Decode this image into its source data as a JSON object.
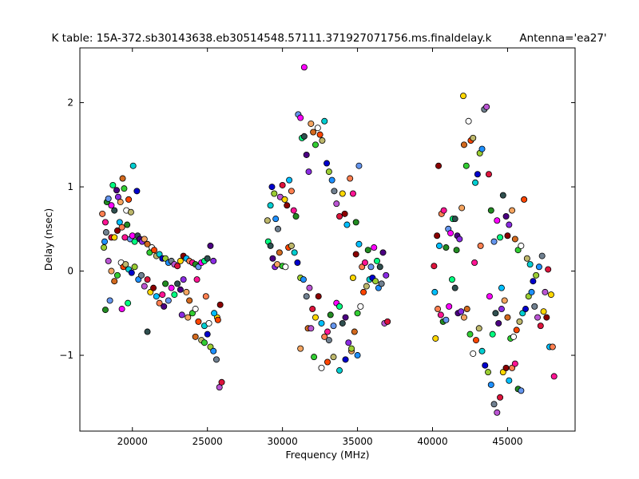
{
  "chart_data": {
    "type": "scatter",
    "title": "K table: 15A-372.sb30143638.eb30514548.57111.371927071756.ms.finaldelay.k",
    "subtitle": "Antenna='ea27'",
    "xlabel": "Frequency (MHz)",
    "ylabel": "Delay (nsec)",
    "xlim": [
      16500,
      49500
    ],
    "ylim": [
      -1.9,
      2.65
    ],
    "xticks": [
      20000,
      25000,
      30000,
      35000,
      40000,
      45000
    ],
    "yticks": [
      -1,
      0,
      1,
      2
    ],
    "grid": false,
    "legend": "none",
    "marker_edge_color": "#000000",
    "palette": [
      "#ff7f50",
      "#1e90ff",
      "#32cd32",
      "#ff00ff",
      "#ffd700",
      "#00ced1",
      "#8a2be2",
      "#ff1493",
      "#708090",
      "#ffffff",
      "#00ff7f",
      "#8b0000",
      "#0000cd",
      "#f4a460",
      "#228b22",
      "#ba55d3",
      "#ff4500",
      "#2f4f4f",
      "#00bfff",
      "#9acd32",
      "#d2691e",
      "#6495ed",
      "#dc143c",
      "#bdb76b",
      "#4b0082"
    ],
    "points": [
      [
        18000,
        0.68
      ],
      [
        18200,
        0.58
      ],
      [
        18300,
        0.82
      ],
      [
        18400,
        0.86
      ],
      [
        18600,
        0.78
      ],
      [
        18700,
        1.02
      ],
      [
        18800,
        0.72
      ],
      [
        18950,
        0.96
      ],
      [
        19050,
        0.88
      ],
      [
        19200,
        0.82
      ],
      [
        19350,
        1.1
      ],
      [
        19450,
        0.98
      ],
      [
        19600,
        0.72
      ],
      [
        19750,
        0.85
      ],
      [
        19900,
        0.7
      ],
      [
        20050,
        1.25
      ],
      [
        20300,
        0.95
      ],
      [
        18100,
        0.28
      ],
      [
        18150,
        0.35
      ],
      [
        18250,
        0.46
      ],
      [
        18400,
        0.12
      ],
      [
        18600,
        0.4
      ],
      [
        18800,
        0.4
      ],
      [
        19000,
        0.48
      ],
      [
        19150,
        0.58
      ],
      [
        19300,
        0.52
      ],
      [
        19500,
        0.4
      ],
      [
        19650,
        0.55
      ],
      [
        19850,
        0.38
      ],
      [
        20000,
        0.42
      ],
      [
        20150,
        0.35
      ],
      [
        20350,
        0.42
      ],
      [
        20500,
        0.38
      ],
      [
        20650,
        0.35
      ],
      [
        20800,
        0.38
      ],
      [
        21000,
        0.32
      ],
      [
        21150,
        0.22
      ],
      [
        21300,
        0.28
      ],
      [
        21450,
        0.25
      ],
      [
        21600,
        0.18
      ],
      [
        21800,
        0.2
      ],
      [
        22000,
        0.15
      ],
      [
        22200,
        0.15
      ],
      [
        22400,
        0.1
      ],
      [
        22600,
        0.12
      ],
      [
        22800,
        0.08
      ],
      [
        23000,
        0.06
      ],
      [
        23200,
        0.12
      ],
      [
        23400,
        0.18
      ],
      [
        23600,
        0.15
      ],
      [
        23800,
        0.12
      ],
      [
        24000,
        0.1
      ],
      [
        24200,
        0.08
      ],
      [
        24400,
        0.05
      ],
      [
        24600,
        0.1
      ],
      [
        24800,
        0.12
      ],
      [
        25000,
        0.15
      ],
      [
        25200,
        0.3
      ],
      [
        25400,
        0.12
      ],
      [
        18600,
        0.0
      ],
      [
        18800,
        -0.12
      ],
      [
        19000,
        -0.05
      ],
      [
        19250,
        0.1
      ],
      [
        19400,
        0.05
      ],
      [
        19550,
        0.08
      ],
      [
        19750,
        0.02
      ],
      [
        19950,
        -0.02
      ],
      [
        20150,
        0.05
      ],
      [
        20400,
        -0.1
      ],
      [
        20600,
        -0.05
      ],
      [
        20800,
        -0.18
      ],
      [
        21000,
        -0.1
      ],
      [
        21200,
        -0.25
      ],
      [
        21400,
        -0.2
      ],
      [
        21600,
        -0.3
      ],
      [
        21800,
        -0.38
      ],
      [
        22000,
        -0.28
      ],
      [
        22200,
        -0.15
      ],
      [
        22400,
        -0.35
      ],
      [
        22600,
        -0.2
      ],
      [
        22800,
        -0.28
      ],
      [
        23000,
        -0.15
      ],
      [
        23200,
        -0.22
      ],
      [
        23400,
        -0.1
      ],
      [
        23600,
        -0.25
      ],
      [
        23800,
        -0.35
      ],
      [
        24000,
        -0.5
      ],
      [
        24200,
        -0.45
      ],
      [
        24400,
        -0.6
      ],
      [
        24600,
        -0.82
      ],
      [
        24800,
        -0.65
      ],
      [
        25000,
        -0.75
      ],
      [
        25200,
        -0.9
      ],
      [
        25400,
        -0.95
      ],
      [
        25600,
        -1.05
      ],
      [
        25800,
        -1.38
      ],
      [
        25950,
        -1.32
      ],
      [
        25650,
        -0.55
      ],
      [
        25850,
        -0.4
      ],
      [
        25450,
        -0.5
      ],
      [
        24900,
        -0.3
      ],
      [
        24300,
        -0.1
      ],
      [
        18200,
        -0.46
      ],
      [
        18500,
        -0.35
      ],
      [
        19300,
        -0.45
      ],
      [
        19700,
        -0.38
      ],
      [
        21000,
        -0.72
      ],
      [
        22100,
        -0.42
      ],
      [
        23300,
        -0.52
      ],
      [
        23700,
        -0.55
      ],
      [
        24200,
        -0.78
      ],
      [
        24800,
        -0.85
      ],
      [
        25100,
        -0.62
      ],
      [
        25700,
        -0.58
      ],
      [
        29000,
        0.6
      ],
      [
        29200,
        0.78
      ],
      [
        29300,
        1.0
      ],
      [
        29450,
        0.92
      ],
      [
        29550,
        0.62
      ],
      [
        29700,
        0.5
      ],
      [
        29850,
        0.88
      ],
      [
        30000,
        1.02
      ],
      [
        30150,
        0.85
      ],
      [
        30300,
        0.78
      ],
      [
        30450,
        1.08
      ],
      [
        30600,
        0.95
      ],
      [
        30750,
        0.72
      ],
      [
        30900,
        0.65
      ],
      [
        31050,
        1.86
      ],
      [
        31200,
        1.82
      ],
      [
        31300,
        1.58
      ],
      [
        31450,
        1.6
      ],
      [
        31600,
        1.38
      ],
      [
        31750,
        1.18
      ],
      [
        31900,
        1.75
      ],
      [
        32050,
        1.65
      ],
      [
        32200,
        1.5
      ],
      [
        32350,
        1.7
      ],
      [
        32500,
        1.62
      ],
      [
        32650,
        1.55
      ],
      [
        32800,
        1.78
      ],
      [
        32950,
        1.28
      ],
      [
        33100,
        1.18
      ],
      [
        33300,
        1.08
      ],
      [
        33450,
        0.95
      ],
      [
        33600,
        0.8
      ],
      [
        33800,
        0.65
      ],
      [
        34000,
        0.92
      ],
      [
        34150,
        0.68
      ],
      [
        34300,
        0.55
      ],
      [
        34500,
        1.1
      ],
      [
        34700,
        0.92
      ],
      [
        34900,
        0.58
      ],
      [
        35100,
        1.25
      ],
      [
        31450,
        2.42
      ],
      [
        29050,
        0.35
      ],
      [
        29200,
        0.3
      ],
      [
        29350,
        0.15
      ],
      [
        29500,
        0.05
      ],
      [
        29650,
        0.08
      ],
      [
        29800,
        0.22
      ],
      [
        30000,
        0.06
      ],
      [
        30200,
        0.05
      ],
      [
        30400,
        0.28
      ],
      [
        30600,
        0.3
      ],
      [
        30800,
        0.22
      ],
      [
        31000,
        0.1
      ],
      [
        31200,
        -0.08
      ],
      [
        31400,
        -0.1
      ],
      [
        31600,
        -0.3
      ],
      [
        31800,
        -0.2
      ],
      [
        32000,
        -0.45
      ],
      [
        32200,
        -0.55
      ],
      [
        32400,
        -0.3
      ],
      [
        32600,
        -0.62
      ],
      [
        32800,
        -0.78
      ],
      [
        33000,
        -0.72
      ],
      [
        33200,
        -0.52
      ],
      [
        33400,
        -0.65
      ],
      [
        33600,
        -0.38
      ],
      [
        33800,
        -0.42
      ],
      [
        34000,
        -0.62
      ],
      [
        34200,
        -0.55
      ],
      [
        34400,
        -0.85
      ],
      [
        34600,
        -0.95
      ],
      [
        34800,
        -0.72
      ],
      [
        35000,
        -0.5
      ],
      [
        35200,
        -0.42
      ],
      [
        35400,
        -0.25
      ],
      [
        35600,
        -0.18
      ],
      [
        35800,
        -0.1
      ],
      [
        36000,
        -0.08
      ],
      [
        36200,
        -0.12
      ],
      [
        36400,
        -0.2
      ],
      [
        36600,
        -0.15
      ],
      [
        36800,
        -0.62
      ],
      [
        37000,
        -0.6
      ],
      [
        34700,
        -0.08
      ],
      [
        34900,
        0.2
      ],
      [
        35100,
        0.32
      ],
      [
        35300,
        0.05
      ],
      [
        35500,
        0.1
      ],
      [
        35700,
        0.25
      ],
      [
        35900,
        0.05
      ],
      [
        36100,
        0.28
      ],
      [
        36300,
        0.12
      ],
      [
        36500,
        0.05
      ],
      [
        36700,
        0.22
      ],
      [
        36900,
        -0.05
      ],
      [
        31200,
        -0.92
      ],
      [
        31700,
        -0.68
      ],
      [
        32100,
        -1.02
      ],
      [
        32600,
        -1.15
      ],
      [
        33000,
        -1.08
      ],
      [
        33400,
        -1.02
      ],
      [
        33800,
        -1.18
      ],
      [
        34200,
        -1.05
      ],
      [
        34600,
        -0.92
      ],
      [
        35000,
        -1.0
      ],
      [
        33100,
        -0.82
      ],
      [
        31900,
        -0.68
      ],
      [
        40100,
        0.06
      ],
      [
        40200,
        -0.8
      ],
      [
        40300,
        0.42
      ],
      [
        40450,
        0.3
      ],
      [
        40600,
        0.68
      ],
      [
        40750,
        0.72
      ],
      [
        40900,
        0.28
      ],
      [
        41050,
        0.5
      ],
      [
        41200,
        0.45
      ],
      [
        41350,
        0.62
      ],
      [
        41500,
        0.62
      ],
      [
        41650,
        0.42
      ],
      [
        41800,
        0.38
      ],
      [
        41950,
        0.75
      ],
      [
        42100,
        1.5
      ],
      [
        42250,
        1.25
      ],
      [
        42400,
        1.78
      ],
      [
        42550,
        1.55
      ],
      [
        42700,
        1.58
      ],
      [
        42850,
        1.05
      ],
      [
        43000,
        1.15
      ],
      [
        43150,
        1.4
      ],
      [
        43300,
        1.45
      ],
      [
        43450,
        1.92
      ],
      [
        43600,
        1.95
      ],
      [
        43750,
        1.15
      ],
      [
        42050,
        2.08
      ],
      [
        40400,
        1.25
      ],
      [
        40150,
        -0.25
      ],
      [
        40350,
        -0.45
      ],
      [
        40550,
        -0.52
      ],
      [
        40700,
        -0.6
      ],
      [
        40900,
        -0.58
      ],
      [
        41100,
        -0.42
      ],
      [
        41300,
        -0.1
      ],
      [
        41500,
        -0.2
      ],
      [
        41700,
        -0.5
      ],
      [
        41900,
        -0.48
      ],
      [
        42100,
        -0.55
      ],
      [
        42300,
        -0.45
      ],
      [
        42500,
        -0.75
      ],
      [
        42700,
        -0.98
      ],
      [
        42900,
        -0.82
      ],
      [
        43100,
        -0.68
      ],
      [
        43300,
        -0.95
      ],
      [
        43500,
        -1.12
      ],
      [
        43700,
        -1.2
      ],
      [
        43900,
        -1.35
      ],
      [
        44100,
        -1.58
      ],
      [
        44300,
        -1.68
      ],
      [
        44500,
        -1.5
      ],
      [
        44700,
        -1.2
      ],
      [
        44900,
        -1.15
      ],
      [
        45100,
        -1.3
      ],
      [
        45300,
        -1.15
      ],
      [
        45500,
        -1.1
      ],
      [
        45700,
        -1.4
      ],
      [
        45900,
        -1.42
      ],
      [
        43800,
        -0.3
      ],
      [
        44000,
        -0.75
      ],
      [
        44200,
        -0.5
      ],
      [
        44400,
        -0.62
      ],
      [
        44600,
        -0.45
      ],
      [
        44800,
        -0.35
      ],
      [
        45000,
        -0.55
      ],
      [
        45200,
        -0.8
      ],
      [
        45400,
        -0.78
      ],
      [
        45600,
        -0.7
      ],
      [
        45800,
        -0.6
      ],
      [
        46000,
        -0.5
      ],
      [
        46200,
        -0.45
      ],
      [
        46400,
        -0.3
      ],
      [
        46600,
        -0.25
      ],
      [
        46800,
        -0.42
      ],
      [
        47000,
        -0.55
      ],
      [
        47200,
        -0.65
      ],
      [
        47400,
        -0.48
      ],
      [
        47600,
        -0.55
      ],
      [
        47800,
        -0.9
      ],
      [
        48000,
        -0.9
      ],
      [
        48100,
        -1.25
      ],
      [
        43900,
        0.72
      ],
      [
        44100,
        0.35
      ],
      [
        44300,
        0.6
      ],
      [
        44500,
        0.4
      ],
      [
        44700,
        0.9
      ],
      [
        44900,
        0.65
      ],
      [
        45100,
        0.55
      ],
      [
        45300,
        0.72
      ],
      [
        45500,
        0.38
      ],
      [
        45700,
        0.25
      ],
      [
        45900,
        0.3
      ],
      [
        46100,
        0.85
      ],
      [
        46300,
        0.15
      ],
      [
        46500,
        0.08
      ],
      [
        46700,
        -0.12
      ],
      [
        46900,
        -0.05
      ],
      [
        47100,
        0.05
      ],
      [
        47300,
        0.18
      ],
      [
        47500,
        -0.25
      ],
      [
        47700,
        0.02
      ],
      [
        47900,
        -0.28
      ],
      [
        45000,
        0.42
      ],
      [
        44600,
        -0.2
      ],
      [
        43200,
        0.3
      ],
      [
        42800,
        0.1
      ],
      [
        41600,
        0.25
      ]
    ]
  }
}
